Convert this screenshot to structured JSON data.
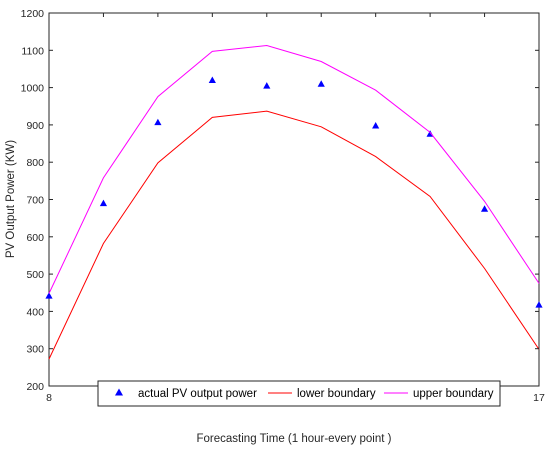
{
  "chart_data": {
    "type": "line",
    "title": "",
    "xlabel": "Forecasting Time (1 hour-every point )",
    "ylabel": "PV Output Power (KW)",
    "xlim": [
      8,
      17
    ],
    "ylim": [
      200,
      1200
    ],
    "x_ticks": [
      8,
      9,
      10,
      11,
      12,
      13,
      14,
      15,
      16,
      17
    ],
    "y_ticks": [
      200,
      300,
      400,
      500,
      600,
      700,
      800,
      900,
      1000,
      1100,
      1200
    ],
    "grid": false,
    "legend_position": "bottom",
    "x": [
      8,
      9,
      10,
      11,
      12,
      13,
      14,
      15,
      16,
      17
    ],
    "series": [
      {
        "name": "actual PV output power",
        "style": "markers",
        "marker": "triangle",
        "color": "#0000ff",
        "values": [
          442,
          690,
          907,
          1020,
          1005,
          1010,
          898,
          876,
          675,
          418
        ]
      },
      {
        "name": "lower boundary",
        "style": "line",
        "color": "#ff0000",
        "values": [
          272,
          582,
          798,
          920,
          937,
          895,
          815,
          708,
          515,
          298
        ]
      },
      {
        "name": "upper boundary",
        "style": "line",
        "color": "#ff00ff",
        "values": [
          448,
          758,
          976,
          1097,
          1113,
          1070,
          993,
          880,
          695,
          475
        ]
      }
    ]
  }
}
